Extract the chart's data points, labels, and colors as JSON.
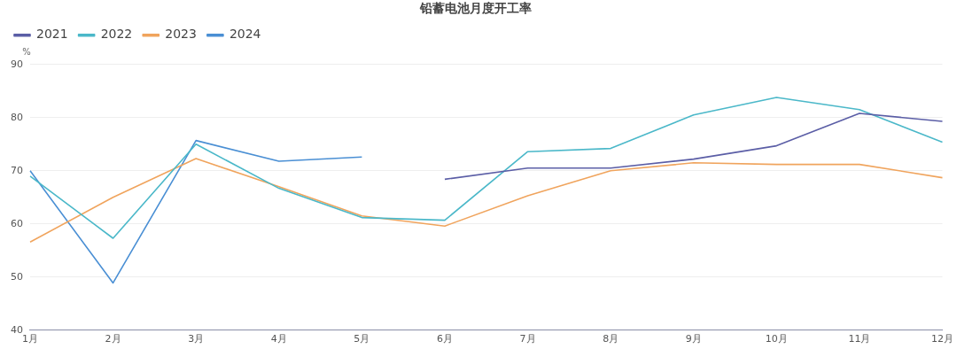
{
  "chart_data": {
    "type": "line",
    "title": "铅蓄电池月度开工率",
    "ylabel": "%",
    "categories": [
      "1月",
      "2月",
      "3月",
      "4月",
      "5月",
      "6月",
      "7月",
      "8月",
      "9月",
      "10月",
      "11月",
      "12月"
    ],
    "series": [
      {
        "name": "2021",
        "color": "#5b5ea6",
        "values": [
          null,
          null,
          null,
          null,
          null,
          68.4,
          70.5,
          70.5,
          72.2,
          74.7,
          80.8,
          79.3
        ]
      },
      {
        "name": "2022",
        "color": "#4bb8c9",
        "values": [
          69.0,
          57.3,
          75.0,
          66.7,
          61.2,
          60.7,
          73.6,
          74.2,
          80.5,
          83.8,
          81.5,
          75.4
        ]
      },
      {
        "name": "2023",
        "color": "#f0a45d",
        "values": [
          56.6,
          65.0,
          72.3,
          67.0,
          61.5,
          59.6,
          65.3,
          70.0,
          71.5,
          71.2,
          71.2,
          68.7
        ]
      },
      {
        "name": "2024",
        "color": "#4a8fd4",
        "values": [
          70.0,
          48.9,
          75.7,
          71.8,
          72.6,
          null,
          null,
          null,
          null,
          null,
          null,
          null
        ]
      }
    ],
    "ylim": [
      40,
      90
    ],
    "yticks": [
      40,
      50,
      60,
      70,
      80,
      90
    ],
    "grid": "y",
    "legend": "top left",
    "marker": "none",
    "line_style": "solid"
  }
}
